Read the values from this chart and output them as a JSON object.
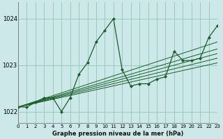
{
  "title": "Graphe pression niveau de la mer (hPa)",
  "bg_color": "#cce8e8",
  "grid_color": "#99ccbb",
  "line_color": "#1a5c2a",
  "x_min": 0,
  "x_max": 23,
  "y_min": 1021.75,
  "y_max": 1024.35,
  "yticks": [
    1022,
    1023,
    1024
  ],
  "xticks": [
    0,
    1,
    2,
    3,
    4,
    5,
    6,
    7,
    8,
    9,
    10,
    11,
    12,
    13,
    14,
    15,
    16,
    17,
    18,
    19,
    20,
    21,
    22,
    23
  ],
  "main_series": [
    1022.1,
    1022.1,
    1022.2,
    1022.3,
    1022.3,
    1022.0,
    1022.3,
    1022.8,
    1023.05,
    1023.5,
    1023.75,
    1024.0,
    1022.9,
    1022.55,
    1022.6,
    1022.6,
    1022.7,
    1022.75,
    1023.3,
    1023.1,
    1023.1,
    1023.15,
    1023.6,
    1023.85
  ],
  "trend_lines": [
    {
      "x0": 0,
      "y0": 1022.1,
      "x1": 23,
      "y1": 1023.05
    },
    {
      "x0": 0,
      "y0": 1022.1,
      "x1": 23,
      "y1": 1023.15
    },
    {
      "x0": 0,
      "y0": 1022.1,
      "x1": 23,
      "y1": 1023.25
    },
    {
      "x0": 0,
      "y0": 1022.1,
      "x1": 23,
      "y1": 1023.35
    },
    {
      "x0": 0,
      "y0": 1022.1,
      "x1": 23,
      "y1": 1023.5
    }
  ]
}
